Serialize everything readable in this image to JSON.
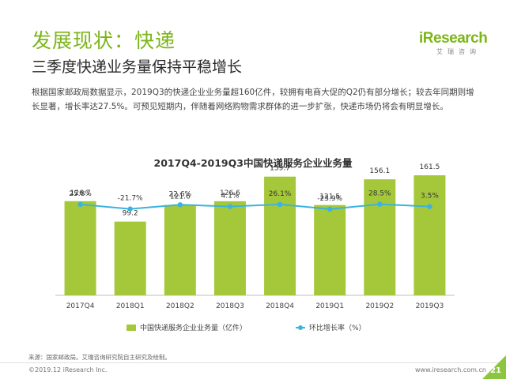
{
  "header": {
    "title": "发展现状：快递",
    "subtitle": "三季度快递业务量保持平稳增长"
  },
  "brand": {
    "logo_text": "iResearch",
    "logo_sub": "艾瑞咨询",
    "accent": "#7cb518"
  },
  "description": "根据国家邮政局数据显示，2019Q3的快递企业业务量超160亿件，较拥有电商大促的Q2仍有部分增长；较去年同期则增长显著，增长率达27.5%。可预见短期内，伴随着网络购物需求群体的进一步扩张，快递市场仍将会有明显增长。",
  "chart_data": {
    "type": "bar",
    "title": "2017Q4-2019Q3中国快递服务企业业务量",
    "categories": [
      "2017Q4",
      "2018Q1",
      "2018Q2",
      "2018Q3",
      "2018Q4",
      "2019Q1",
      "2019Q2",
      "2019Q3"
    ],
    "series": [
      {
        "name": "中国快递服务企业业务量（亿件）",
        "type": "bar",
        "color": "#a5c83a",
        "values": [
          126.7,
          99.2,
          121.6,
          126.6,
          159.7,
          121.5,
          156.1,
          161.5
        ],
        "labels": [
          "126.7",
          "99.2",
          "121.6",
          "126.6",
          "159.7",
          "121.5",
          "156.1",
          "161.5"
        ]
      },
      {
        "name": "环比增长率（%）",
        "type": "line",
        "color": "#3bb3dd",
        "values": [
          25.8,
          -21.7,
          22.6,
          4.1,
          26.1,
          -23.9,
          28.5,
          3.5
        ],
        "labels": [
          "25.8%",
          "-21.7%",
          "22.6%",
          "4.1%",
          "26.1%",
          "-23.9%",
          "28.5%",
          "3.5%"
        ]
      }
    ],
    "grid": false,
    "legend": "bottom"
  },
  "source": "来源：国家邮政局。艾瑞咨询研究院自主研究及绘制。",
  "footer": {
    "copyright": "©2019.12 iResearch Inc.",
    "url": "www.iresearch.com.cn",
    "page": "21"
  }
}
